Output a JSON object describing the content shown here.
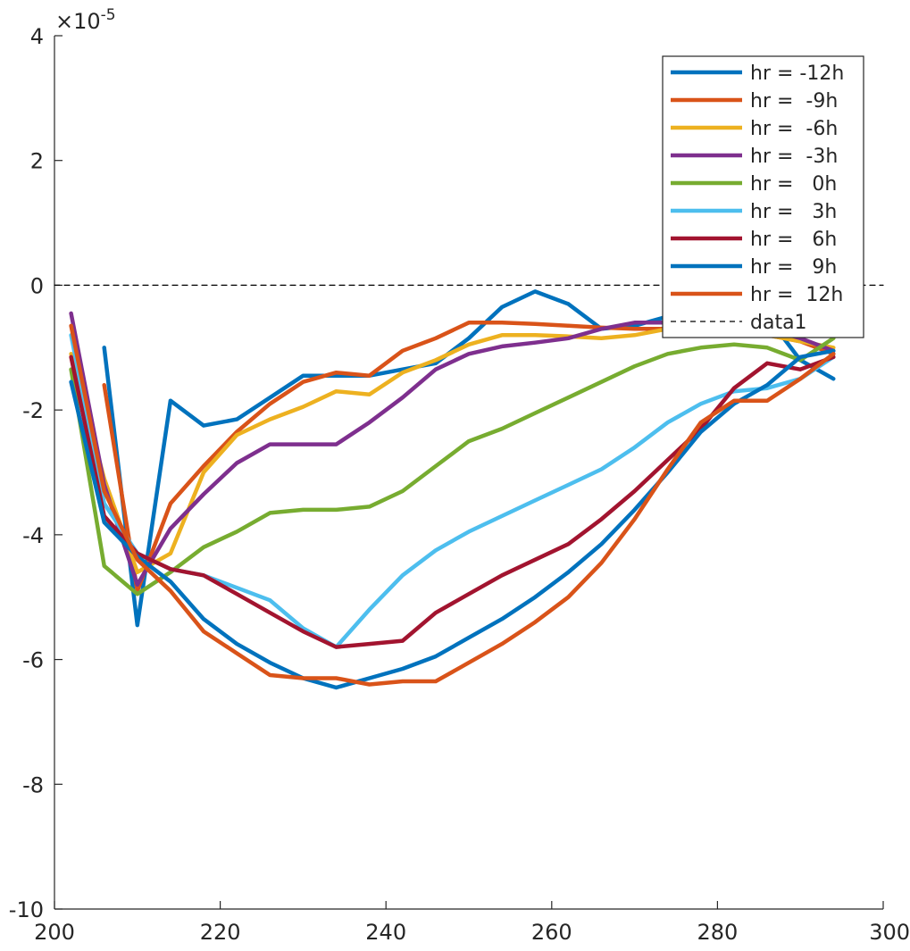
{
  "chart_data": {
    "type": "line",
    "title": "",
    "xlabel": "",
    "ylabel": "",
    "xlim": [
      200,
      300
    ],
    "ylim": [
      -10,
      4
    ],
    "y_exponent_label": "×10",
    "y_exponent_power": "-5",
    "xticks": [
      200,
      220,
      240,
      260,
      280,
      300
    ],
    "yticks": [
      4,
      2,
      0,
      -2,
      -4,
      -6,
      -8,
      -10
    ],
    "xtick_labels": [
      "200",
      "220",
      "240",
      "260",
      "280",
      "300"
    ],
    "ytick_labels": [
      "4",
      "2",
      "0",
      "-2",
      "-4",
      "-6",
      "-8",
      "-10"
    ],
    "grid": false,
    "legend_position": "top-right",
    "series": [
      {
        "name": "hr = -12h",
        "color": "#0072BD",
        "x": [
          206,
          210,
          214,
          218,
          222,
          226,
          230,
          234,
          238,
          242,
          246,
          250,
          254,
          258,
          262,
          266,
          270,
          274,
          278,
          282,
          286,
          290,
          294
        ],
        "y": [
          -1.0,
          -5.45,
          -1.85,
          -2.25,
          -2.15,
          -1.8,
          -1.45,
          -1.45,
          -1.45,
          -1.35,
          -1.25,
          -0.85,
          -0.35,
          -0.1,
          -0.3,
          -0.7,
          -0.65,
          -0.5,
          -0.4,
          -0.5,
          -0.5,
          -1.2,
          -1.5
        ]
      },
      {
        "name": "hr =  -9h",
        "color": "#D95319",
        "x": [
          206,
          210,
          214,
          218,
          222,
          226,
          230,
          234,
          238,
          242,
          246,
          250,
          254,
          258,
          262,
          266,
          270,
          274,
          278,
          282,
          286,
          290,
          294
        ],
        "y": [
          -1.6,
          -4.9,
          -3.5,
          -2.9,
          -2.35,
          -1.9,
          -1.55,
          -1.4,
          -1.45,
          -1.05,
          -0.85,
          -0.6,
          -0.6,
          -0.62,
          -0.65,
          -0.68,
          -0.7,
          -0.7,
          -0.72,
          -0.75,
          -0.8,
          -0.9,
          -1.1
        ]
      },
      {
        "name": "hr =  -6h",
        "color": "#EDB120",
        "x": [
          202,
          206,
          210,
          214,
          218,
          222,
          226,
          230,
          234,
          238,
          242,
          246,
          250,
          254,
          258,
          262,
          266,
          270,
          274,
          278,
          282,
          286,
          290,
          294
        ],
        "y": [
          -1.1,
          -3.1,
          -4.6,
          -4.3,
          -3.0,
          -2.4,
          -2.15,
          -1.95,
          -1.7,
          -1.75,
          -1.4,
          -1.2,
          -0.95,
          -0.8,
          -0.8,
          -0.82,
          -0.85,
          -0.8,
          -0.7,
          -0.72,
          -0.75,
          -0.8,
          -0.9,
          -1.0
        ]
      },
      {
        "name": "hr =  -3h",
        "color": "#7E2F8E",
        "x": [
          202,
          206,
          210,
          214,
          218,
          222,
          226,
          230,
          234,
          238,
          242,
          246,
          250,
          254,
          258,
          262,
          266,
          270,
          274,
          278,
          282,
          286,
          290,
          294
        ],
        "y": [
          -0.45,
          -3.2,
          -4.8,
          -3.9,
          -3.35,
          -2.85,
          -2.55,
          -2.55,
          -2.55,
          -2.2,
          -1.8,
          -1.35,
          -1.1,
          -0.98,
          -0.92,
          -0.85,
          -0.7,
          -0.6,
          -0.6,
          -0.62,
          -0.65,
          -0.7,
          -0.85,
          -1.05
        ]
      },
      {
        "name": "hr =   0h",
        "color": "#77AC30",
        "x": [
          202,
          206,
          210,
          214,
          218,
          222,
          226,
          230,
          234,
          238,
          242,
          246,
          250,
          254,
          258,
          262,
          266,
          270,
          274,
          278,
          282,
          286,
          290,
          294
        ],
        "y": [
          -1.35,
          -4.5,
          -4.95,
          -4.6,
          -4.2,
          -3.95,
          -3.65,
          -3.6,
          -3.6,
          -3.55,
          -3.3,
          -2.9,
          -2.5,
          -2.3,
          -2.05,
          -1.8,
          -1.55,
          -1.3,
          -1.1,
          -1.0,
          -0.95,
          -1.0,
          -1.2,
          -0.85
        ]
      },
      {
        "name": "hr =   3h",
        "color": "#4DBEEE",
        "x": [
          202,
          206,
          210,
          214,
          218,
          222,
          226,
          230,
          234,
          238,
          242,
          246,
          250,
          254,
          258,
          262,
          266,
          270,
          274,
          278,
          282,
          286,
          290,
          294
        ],
        "y": [
          -0.8,
          -3.5,
          -4.3,
          -4.55,
          -4.65,
          -4.85,
          -5.05,
          -5.5,
          -5.8,
          -5.2,
          -4.65,
          -4.25,
          -3.95,
          -3.7,
          -3.45,
          -3.2,
          -2.95,
          -2.6,
          -2.2,
          -1.9,
          -1.7,
          -1.65,
          -1.5,
          -1.15
        ]
      },
      {
        "name": "hr =   6h",
        "color": "#A2142F",
        "x": [
          202,
          206,
          210,
          214,
          218,
          222,
          226,
          230,
          234,
          238,
          242,
          246,
          250,
          254,
          258,
          262,
          266,
          270,
          274,
          278,
          282,
          286,
          290,
          294
        ],
        "y": [
          -1.15,
          -3.7,
          -4.3,
          -4.55,
          -4.65,
          -4.95,
          -5.25,
          -5.55,
          -5.8,
          -5.75,
          -5.7,
          -5.25,
          -4.95,
          -4.65,
          -4.4,
          -4.15,
          -3.75,
          -3.3,
          -2.8,
          -2.3,
          -1.65,
          -1.25,
          -1.35,
          -1.15
        ]
      },
      {
        "name": "hr =   9h",
        "color": "#0072BD",
        "x": [
          202,
          206,
          210,
          214,
          218,
          222,
          226,
          230,
          234,
          238,
          242,
          246,
          250,
          254,
          258,
          262,
          266,
          270,
          274,
          278,
          282,
          286,
          290,
          294
        ],
        "y": [
          -1.55,
          -3.8,
          -4.35,
          -4.75,
          -5.35,
          -5.75,
          -6.05,
          -6.3,
          -6.45,
          -6.3,
          -6.15,
          -5.95,
          -5.65,
          -5.35,
          -5.0,
          -4.6,
          -4.15,
          -3.6,
          -3.0,
          -2.35,
          -1.9,
          -1.6,
          -1.15,
          -1.05
        ]
      },
      {
        "name": "hr =  12h",
        "color": "#D95319",
        "x": [
          202,
          206,
          210,
          214,
          218,
          222,
          226,
          230,
          234,
          238,
          242,
          246,
          250,
          254,
          258,
          262,
          266,
          270,
          274,
          278,
          282,
          286,
          290,
          294
        ],
        "y": [
          -0.65,
          -3.3,
          -4.4,
          -4.9,
          -5.55,
          -5.9,
          -6.25,
          -6.3,
          -6.3,
          -6.4,
          -6.35,
          -6.35,
          -6.05,
          -5.75,
          -5.4,
          -5.0,
          -4.45,
          -3.75,
          -2.95,
          -2.2,
          -1.85,
          -1.85,
          -1.5,
          -1.1
        ]
      },
      {
        "name": "data1",
        "color": "#000000",
        "dashed": true,
        "x": [
          200,
          300
        ],
        "y": [
          0,
          0
        ]
      }
    ]
  }
}
